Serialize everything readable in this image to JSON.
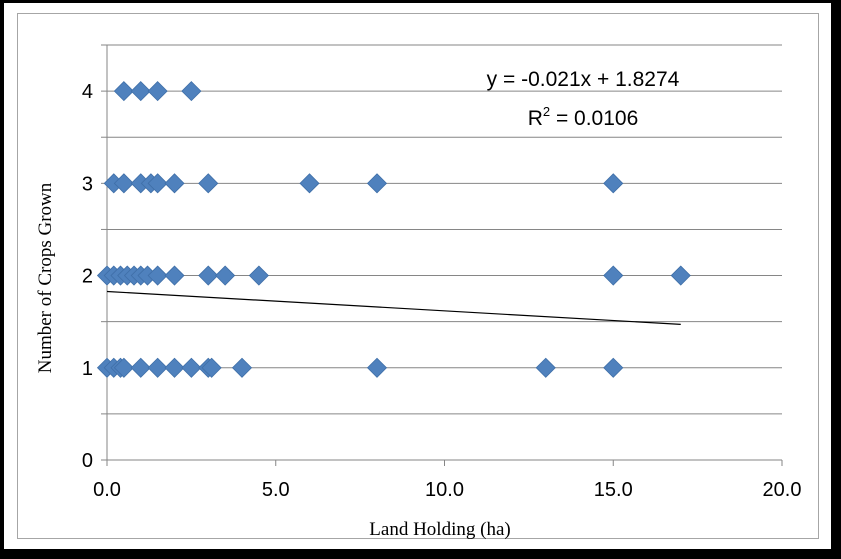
{
  "chart_data": {
    "type": "scatter",
    "title": "",
    "xlabel": "Land Holding (ha)",
    "ylabel": "Number of Crops Grown",
    "xlim": [
      0,
      20
    ],
    "ylim": [
      0,
      4.5
    ],
    "x_ticks": [
      "0.0",
      "5.0",
      "10.0",
      "15.0",
      "20.0"
    ],
    "y_ticks": [
      "0",
      "1",
      "2",
      "3",
      "4"
    ],
    "grid": "horizontal",
    "marker_color": "#4f81bd",
    "trendline": {
      "slope": -0.021,
      "intercept": 1.8274,
      "x_range": [
        0,
        17
      ],
      "equation": "y = -0.021x + 1.8274",
      "r2_label": "R",
      "r2_sup": "2",
      "r2_value": " = 0.0106"
    },
    "series": [
      {
        "x": [
          0.5,
          1.0,
          1.5,
          2.5,
          0.2,
          0.5,
          1.0,
          1.3,
          1.5,
          2.0,
          3.0,
          6.0,
          8.0,
          15.0,
          0.0,
          0.2,
          0.4,
          0.6,
          0.8,
          1.0,
          1.2,
          1.5,
          2.0,
          3.0,
          3.5,
          4.5,
          15.0,
          17.0,
          0.0,
          0.2,
          0.4,
          0.5,
          1.0,
          1.5,
          2.0,
          2.5,
          3.0,
          3.1,
          4.0,
          8.0,
          13.0,
          15.0
        ],
        "y": [
          4,
          4,
          4,
          4,
          3,
          3,
          3,
          3,
          3,
          3,
          3,
          3,
          3,
          3,
          2,
          2,
          2,
          2,
          2,
          2,
          2,
          2,
          2,
          2,
          2,
          2,
          2,
          2,
          1,
          1,
          1,
          1,
          1,
          1,
          1,
          1,
          1,
          1,
          1,
          1,
          1,
          1
        ]
      }
    ]
  }
}
